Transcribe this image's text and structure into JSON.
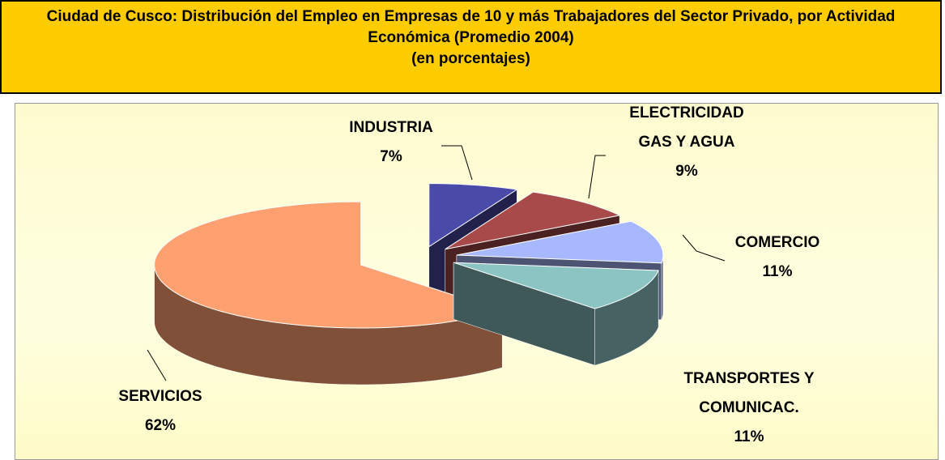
{
  "chart_data": {
    "type": "pie3d",
    "title": "Ciudad de Cusco: Distribución del Empleo en Empresas de 10 y más Trabajadores del Sector Privado, por Actividad Económica (Promedio 2004)",
    "subtitle": "(en porcentajes)",
    "categories": [
      "INDUSTRIA",
      "ELECTRICIDAD GAS Y AGUA",
      "COMERCIO",
      "TRANSPORTES Y COMUNICAC.",
      "SERVICIOS"
    ],
    "values": [
      7,
      9,
      11,
      11,
      62
    ],
    "value_labels": [
      "7%",
      "9%",
      "11%",
      "11%",
      "62%"
    ],
    "colors": [
      "#4a4aa8",
      "#a84a4a",
      "#a8b8ff",
      "#8cc4c4",
      "#ffa070"
    ]
  }
}
